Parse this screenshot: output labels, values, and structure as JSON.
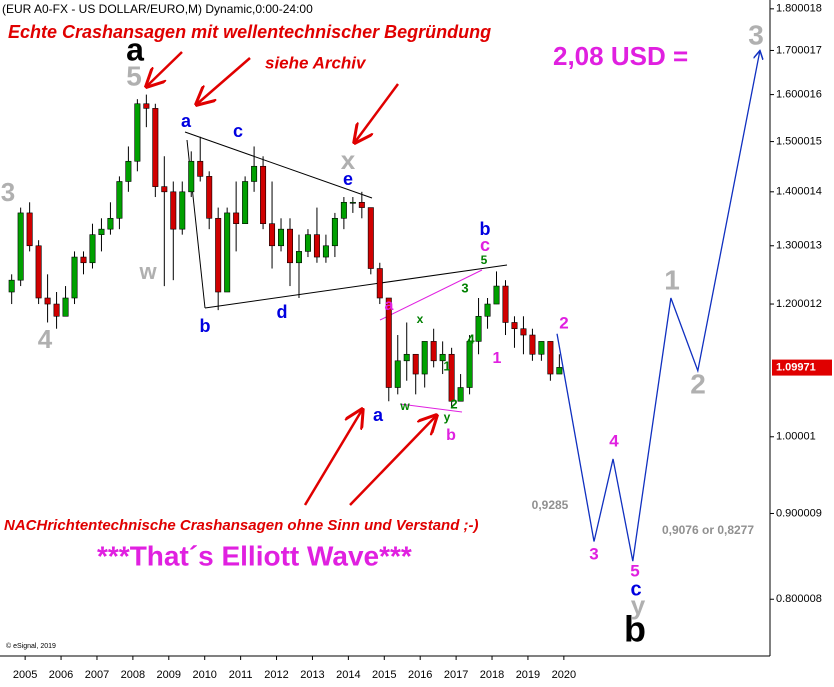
{
  "chart_data": {
    "type": "candlestick",
    "title": "(EUR A0-FX - US DOLLAR/EURO,M) Dynamic,0:00-24:00",
    "copyright": "© eSignal, 2019",
    "log_scale": true,
    "up_color": "#00a000",
    "down_color": "#d00000",
    "xlim": [
      2004.3,
      2025.74
    ],
    "xticks": [
      2005,
      2006,
      2007,
      2008,
      2009,
      2010,
      2011,
      2012,
      2013,
      2014,
      2015,
      2016,
      2017,
      2018,
      2019,
      2020
    ],
    "ylim": [
      0.74,
      1.822
    ],
    "yticks": [
      1.800018,
      1.700017,
      1.600016,
      1.500015,
      1.400014,
      1.300013,
      1.200012,
      1.00001,
      0.900009,
      0.800008
    ],
    "last_price": 1.09971,
    "last_price_color": "#e00000",
    "x": [
      2004.625,
      2004.875,
      2005.125,
      2005.375,
      2005.625,
      2005.875,
      2006.125,
      2006.375,
      2006.625,
      2006.875,
      2007.125,
      2007.375,
      2007.625,
      2007.875,
      2008.125,
      2008.375,
      2008.625,
      2008.875,
      2009.125,
      2009.375,
      2009.625,
      2009.875,
      2010.125,
      2010.375,
      2010.625,
      2010.875,
      2011.125,
      2011.375,
      2011.625,
      2011.875,
      2012.125,
      2012.375,
      2012.625,
      2012.875,
      2013.125,
      2013.375,
      2013.625,
      2013.875,
      2014.125,
      2014.375,
      2014.625,
      2014.875,
      2015.125,
      2015.375,
      2015.625,
      2015.875,
      2016.125,
      2016.375,
      2016.625,
      2016.875,
      2017.125,
      2017.375,
      2017.625,
      2017.875,
      2018.125,
      2018.375,
      2018.625,
      2018.875,
      2019.125,
      2019.375,
      2019.625,
      2019.875
    ],
    "open": [
      1.22,
      1.24,
      1.36,
      1.3,
      1.21,
      1.2,
      1.18,
      1.21,
      1.28,
      1.27,
      1.32,
      1.33,
      1.35,
      1.42,
      1.46,
      1.58,
      1.57,
      1.41,
      1.4,
      1.33,
      1.4,
      1.46,
      1.43,
      1.35,
      1.22,
      1.36,
      1.34,
      1.42,
      1.45,
      1.34,
      1.3,
      1.33,
      1.27,
      1.29,
      1.32,
      1.28,
      1.3,
      1.35,
      1.38,
      1.38,
      1.37,
      1.26,
      1.21,
      1.07,
      1.11,
      1.12,
      1.09,
      1.14,
      1.11,
      1.12,
      1.05,
      1.07,
      1.14,
      1.18,
      1.2,
      1.23,
      1.17,
      1.16,
      1.15,
      1.12,
      1.14,
      1.09
    ],
    "high": [
      1.25,
      1.37,
      1.38,
      1.31,
      1.25,
      1.22,
      1.23,
      1.29,
      1.29,
      1.34,
      1.35,
      1.38,
      1.43,
      1.49,
      1.59,
      1.6,
      1.58,
      1.47,
      1.42,
      1.42,
      1.48,
      1.51,
      1.44,
      1.37,
      1.37,
      1.42,
      1.43,
      1.49,
      1.47,
      1.42,
      1.35,
      1.35,
      1.32,
      1.33,
      1.37,
      1.32,
      1.36,
      1.39,
      1.39,
      1.4,
      1.37,
      1.27,
      1.21,
      1.15,
      1.17,
      1.12,
      1.14,
      1.16,
      1.14,
      1.13,
      1.09,
      1.15,
      1.21,
      1.21,
      1.255,
      1.24,
      1.18,
      1.18,
      1.16,
      1.14,
      1.14,
      1.12
    ],
    "low": [
      1.2,
      1.23,
      1.29,
      1.2,
      1.17,
      1.16,
      1.18,
      1.2,
      1.25,
      1.26,
      1.29,
      1.32,
      1.33,
      1.4,
      1.44,
      1.53,
      1.39,
      1.23,
      1.24,
      1.32,
      1.39,
      1.42,
      1.33,
      1.19,
      1.22,
      1.29,
      1.34,
      1.4,
      1.33,
      1.26,
      1.29,
      1.23,
      1.21,
      1.28,
      1.27,
      1.27,
      1.28,
      1.33,
      1.36,
      1.35,
      1.25,
      1.2,
      1.05,
      1.06,
      1.08,
      1.06,
      1.07,
      1.1,
      1.09,
      1.04,
      1.05,
      1.06,
      1.12,
      1.16,
      1.2,
      1.15,
      1.13,
      1.12,
      1.11,
      1.11,
      1.08,
      1.09
    ],
    "close": [
      1.24,
      1.36,
      1.3,
      1.21,
      1.2,
      1.18,
      1.21,
      1.28,
      1.27,
      1.32,
      1.33,
      1.35,
      1.42,
      1.46,
      1.58,
      1.57,
      1.41,
      1.4,
      1.33,
      1.4,
      1.46,
      1.43,
      1.35,
      1.22,
      1.36,
      1.34,
      1.42,
      1.45,
      1.34,
      1.3,
      1.33,
      1.27,
      1.29,
      1.32,
      1.28,
      1.3,
      1.35,
      1.38,
      1.38,
      1.37,
      1.26,
      1.21,
      1.07,
      1.11,
      1.12,
      1.09,
      1.14,
      1.11,
      1.12,
      1.05,
      1.07,
      1.14,
      1.18,
      1.2,
      1.23,
      1.17,
      1.16,
      1.15,
      1.12,
      1.14,
      1.09,
      1.1
    ],
    "projection": {
      "color": "#1030c0",
      "x": [
        2019.81,
        2020.84,
        2021.37,
        2021.92,
        2022.98,
        2023.73,
        2025.46
      ],
      "values": [
        1.152,
        0.866,
        0.97,
        0.843,
        1.21,
        1.095,
        1.7
      ]
    },
    "annotations": [
      {
        "text": "Echte Crashansagen mit wellentechnischer Begründung",
        "color": "#e00000"
      },
      {
        "text": "siehe Archiv",
        "color": "#e00000"
      },
      {
        "text": "2,08 USD =",
        "color": "#e020e0"
      },
      {
        "text": "3",
        "color": "#b0b0b0"
      },
      {
        "text": "a",
        "color": "#000000"
      },
      {
        "text": "5",
        "color": "#b0b0b0"
      },
      {
        "text": "a",
        "color": "#0000e0"
      },
      {
        "text": "c",
        "color": "#0000e0"
      },
      {
        "text": "x",
        "color": "#b0b0b0"
      },
      {
        "text": "e",
        "color": "#0000e0"
      },
      {
        "text": "3",
        "color": "#b0b0b0"
      },
      {
        "text": "w",
        "color": "#b0b0b0"
      },
      {
        "text": "4",
        "color": "#b0b0b0"
      },
      {
        "text": "b",
        "color": "#0000e0"
      },
      {
        "text": "d",
        "color": "#0000e0"
      },
      {
        "text": "b",
        "color": "#0000e0"
      },
      {
        "text": "c",
        "color": "#e020e0"
      },
      {
        "text": "5",
        "color": "#008000"
      },
      {
        "text": "a",
        "color": "#e020e0"
      },
      {
        "text": "x",
        "color": "#008000"
      },
      {
        "text": "3",
        "color": "#008000"
      },
      {
        "text": "4",
        "color": "#008000"
      },
      {
        "text": "1",
        "color": "#008000"
      },
      {
        "text": "2",
        "color": "#e020e0"
      },
      {
        "text": "1",
        "color": "#e020e0"
      },
      {
        "text": "1",
        "color": "#b0b0b0"
      },
      {
        "text": "2",
        "color": "#b0b0b0"
      },
      {
        "text": "a",
        "color": "#0000e0"
      },
      {
        "text": "w",
        "color": "#008000"
      },
      {
        "text": "y",
        "color": "#008000"
      },
      {
        "text": "2",
        "color": "#008000"
      },
      {
        "text": "b",
        "color": "#e020e0"
      },
      {
        "text": "0,9285",
        "color": "#909090"
      },
      {
        "text": "4",
        "color": "#e020e0"
      },
      {
        "text": "NACHrichtentechnische Crashansagen ohne Sinn und Verstand ;-)",
        "color": "#e00000"
      },
      {
        "text": "***That´s Elliott Wave***",
        "color": "#e020e0"
      },
      {
        "text": "3",
        "color": "#e020e0"
      },
      {
        "text": "0,9076 or 0,8277",
        "color": "#909090"
      },
      {
        "text": "5",
        "color": "#e020e0"
      },
      {
        "text": "c",
        "color": "#0000e0"
      },
      {
        "text": "y",
        "color": "#b0b0b0"
      },
      {
        "text": "b",
        "color": "#000000"
      }
    ]
  }
}
